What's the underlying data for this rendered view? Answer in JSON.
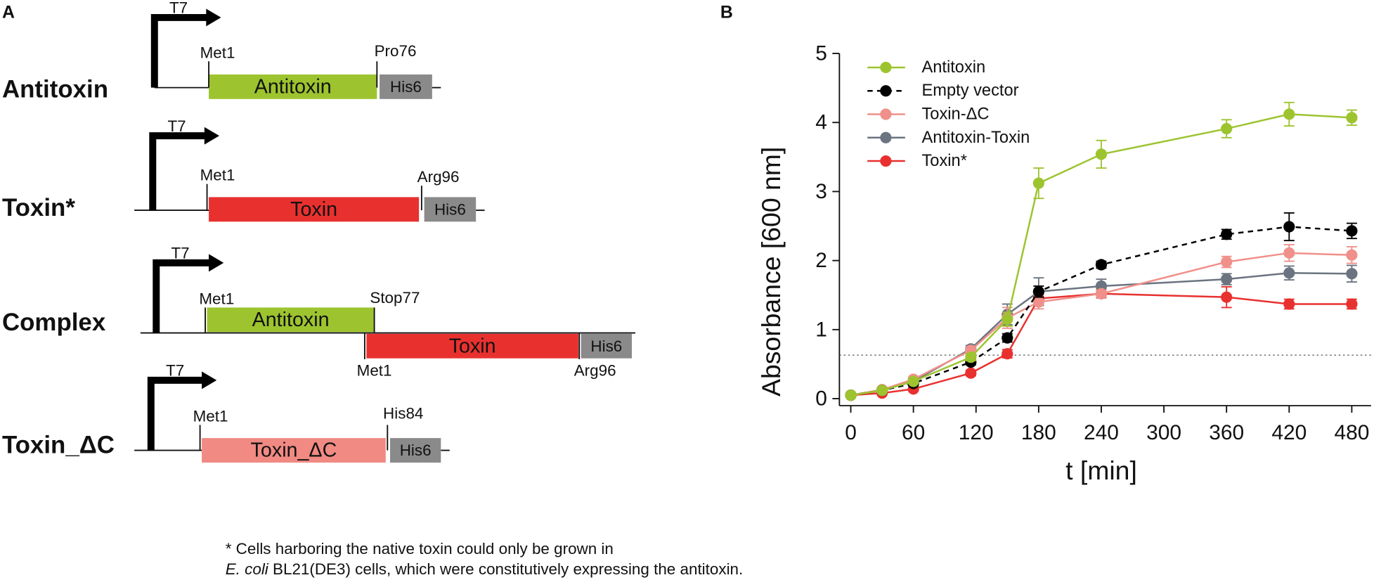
{
  "diagram": {
    "panel_label": "A",
    "constructs": [
      {
        "name": "Antitoxin",
        "promoter": "T7",
        "box": "Antitoxin",
        "start": "Met1",
        "end": "Pro76",
        "tag": "His6"
      },
      {
        "name": "Toxin*",
        "promoter": "T7",
        "box": "Toxin",
        "start": "Met1",
        "end": "Arg96",
        "tag": "His6"
      },
      {
        "name": "Complex",
        "promoter": "T7",
        "box1": "Antitoxin",
        "start1": "Met1",
        "end1": "Stop77",
        "box2": "Toxin",
        "start2": "Met1",
        "end2": "Arg96",
        "tag": "His6"
      },
      {
        "name": "Toxin_ΔC",
        "promoter": "T7",
        "box": "Toxin_ΔC",
        "start": "Met1",
        "end": "His84",
        "tag": "His6"
      }
    ],
    "footnote": {
      "line1": "* Cells harboring the native toxin could only be grown in",
      "line2_italic": "E. coli",
      "line2_rest": " BL21(DE3) cells, which were constitutively expressing the antitoxin."
    }
  },
  "chart_data": {
    "type": "line",
    "panel_label": "B",
    "x_label": "t [min]",
    "y_label": "Absorbance [600 nm]",
    "x": [
      0,
      30,
      60,
      115,
      150,
      180,
      240,
      360,
      420,
      480
    ],
    "xlim": [
      0,
      480
    ],
    "xticks": [
      0,
      60,
      120,
      180,
      240,
      300,
      360,
      420,
      480
    ],
    "ylim": [
      0,
      5
    ],
    "yticks": [
      0,
      1,
      2,
      3,
      4,
      5
    ],
    "reference_line": {
      "value": 0.63,
      "color": "#555555"
    },
    "legend": "upper left",
    "series": [
      {
        "name": "Antitoxin",
        "color": "#9dc42f",
        "dashed": false,
        "values": [
          0.05,
          0.12,
          0.25,
          0.6,
          1.15,
          3.12,
          3.54,
          3.91,
          4.12,
          4.07
        ],
        "errors": [
          0.02,
          0.02,
          0.03,
          0.05,
          0.1,
          0.22,
          0.2,
          0.13,
          0.17,
          0.11
        ]
      },
      {
        "name": "Empty vector",
        "color": "#000000",
        "dashed": true,
        "values": [
          0.05,
          0.12,
          0.22,
          0.53,
          0.88,
          1.55,
          1.94,
          2.38,
          2.49,
          2.43
        ],
        "errors": [
          0.02,
          0.02,
          0.03,
          0.04,
          0.06,
          0.08,
          0.05,
          0.07,
          0.2,
          0.11
        ]
      },
      {
        "name": "Toxin-ΔC",
        "color": "#f0908a",
        "dashed": false,
        "values": [
          0.05,
          0.13,
          0.28,
          0.7,
          1.17,
          1.4,
          1.52,
          1.98,
          2.11,
          2.08
        ],
        "errors": [
          0.02,
          0.02,
          0.03,
          0.05,
          0.15,
          0.1,
          0.05,
          0.08,
          0.12,
          0.12
        ]
      },
      {
        "name": "Antitoxin-Toxin",
        "color": "#6b7480",
        "dashed": false,
        "values": [
          0.05,
          0.12,
          0.25,
          0.72,
          1.22,
          1.55,
          1.63,
          1.73,
          1.82,
          1.81
        ],
        "errors": [
          0.02,
          0.02,
          0.03,
          0.05,
          0.15,
          0.2,
          0.1,
          0.08,
          0.1,
          0.12
        ]
      },
      {
        "name": "Toxin*",
        "color": "#e8312f",
        "dashed": false,
        "values": [
          0.05,
          0.08,
          0.14,
          0.37,
          0.65,
          1.45,
          1.52,
          1.47,
          1.37,
          1.37
        ],
        "errors": [
          0.02,
          0.02,
          0.03,
          0.04,
          0.06,
          0.1,
          0.06,
          0.15,
          0.07,
          0.07
        ]
      }
    ]
  }
}
